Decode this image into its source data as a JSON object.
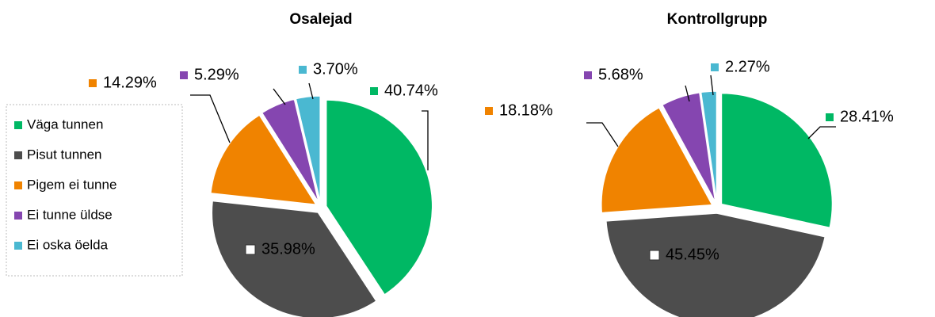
{
  "chart_data": [
    {
      "type": "pie",
      "title": "Osalejad",
      "categories": [
        "Väga tunnen",
        "Pisut tunnen",
        "Pigem ei tunne",
        "Ei tunne üldse",
        "Ei oska öelda"
      ],
      "values": [
        40.74,
        35.98,
        14.29,
        5.29,
        3.7
      ],
      "value_labels": [
        "40.74%",
        "35.98%",
        "14.29%",
        "5.29%",
        "3.70%"
      ],
      "colors": [
        "#00b864",
        "#4d4d4d",
        "#f08300",
        "#8546b0",
        "#4ab8d1"
      ]
    },
    {
      "type": "pie",
      "title": "Kontrollgrupp",
      "categories": [
        "Väga tunnen",
        "Pisut tunnen",
        "Pigem ei tunne",
        "Ei tunne üldse",
        "Ei oska öelda"
      ],
      "values": [
        28.41,
        45.45,
        18.18,
        5.68,
        2.27
      ],
      "value_labels": [
        "28.41%",
        "45.45%",
        "18.18%",
        "5.68%",
        "2.27%"
      ],
      "colors": [
        "#00b864",
        "#4d4d4d",
        "#f08300",
        "#8546b0",
        "#4ab8d1"
      ]
    }
  ]
}
